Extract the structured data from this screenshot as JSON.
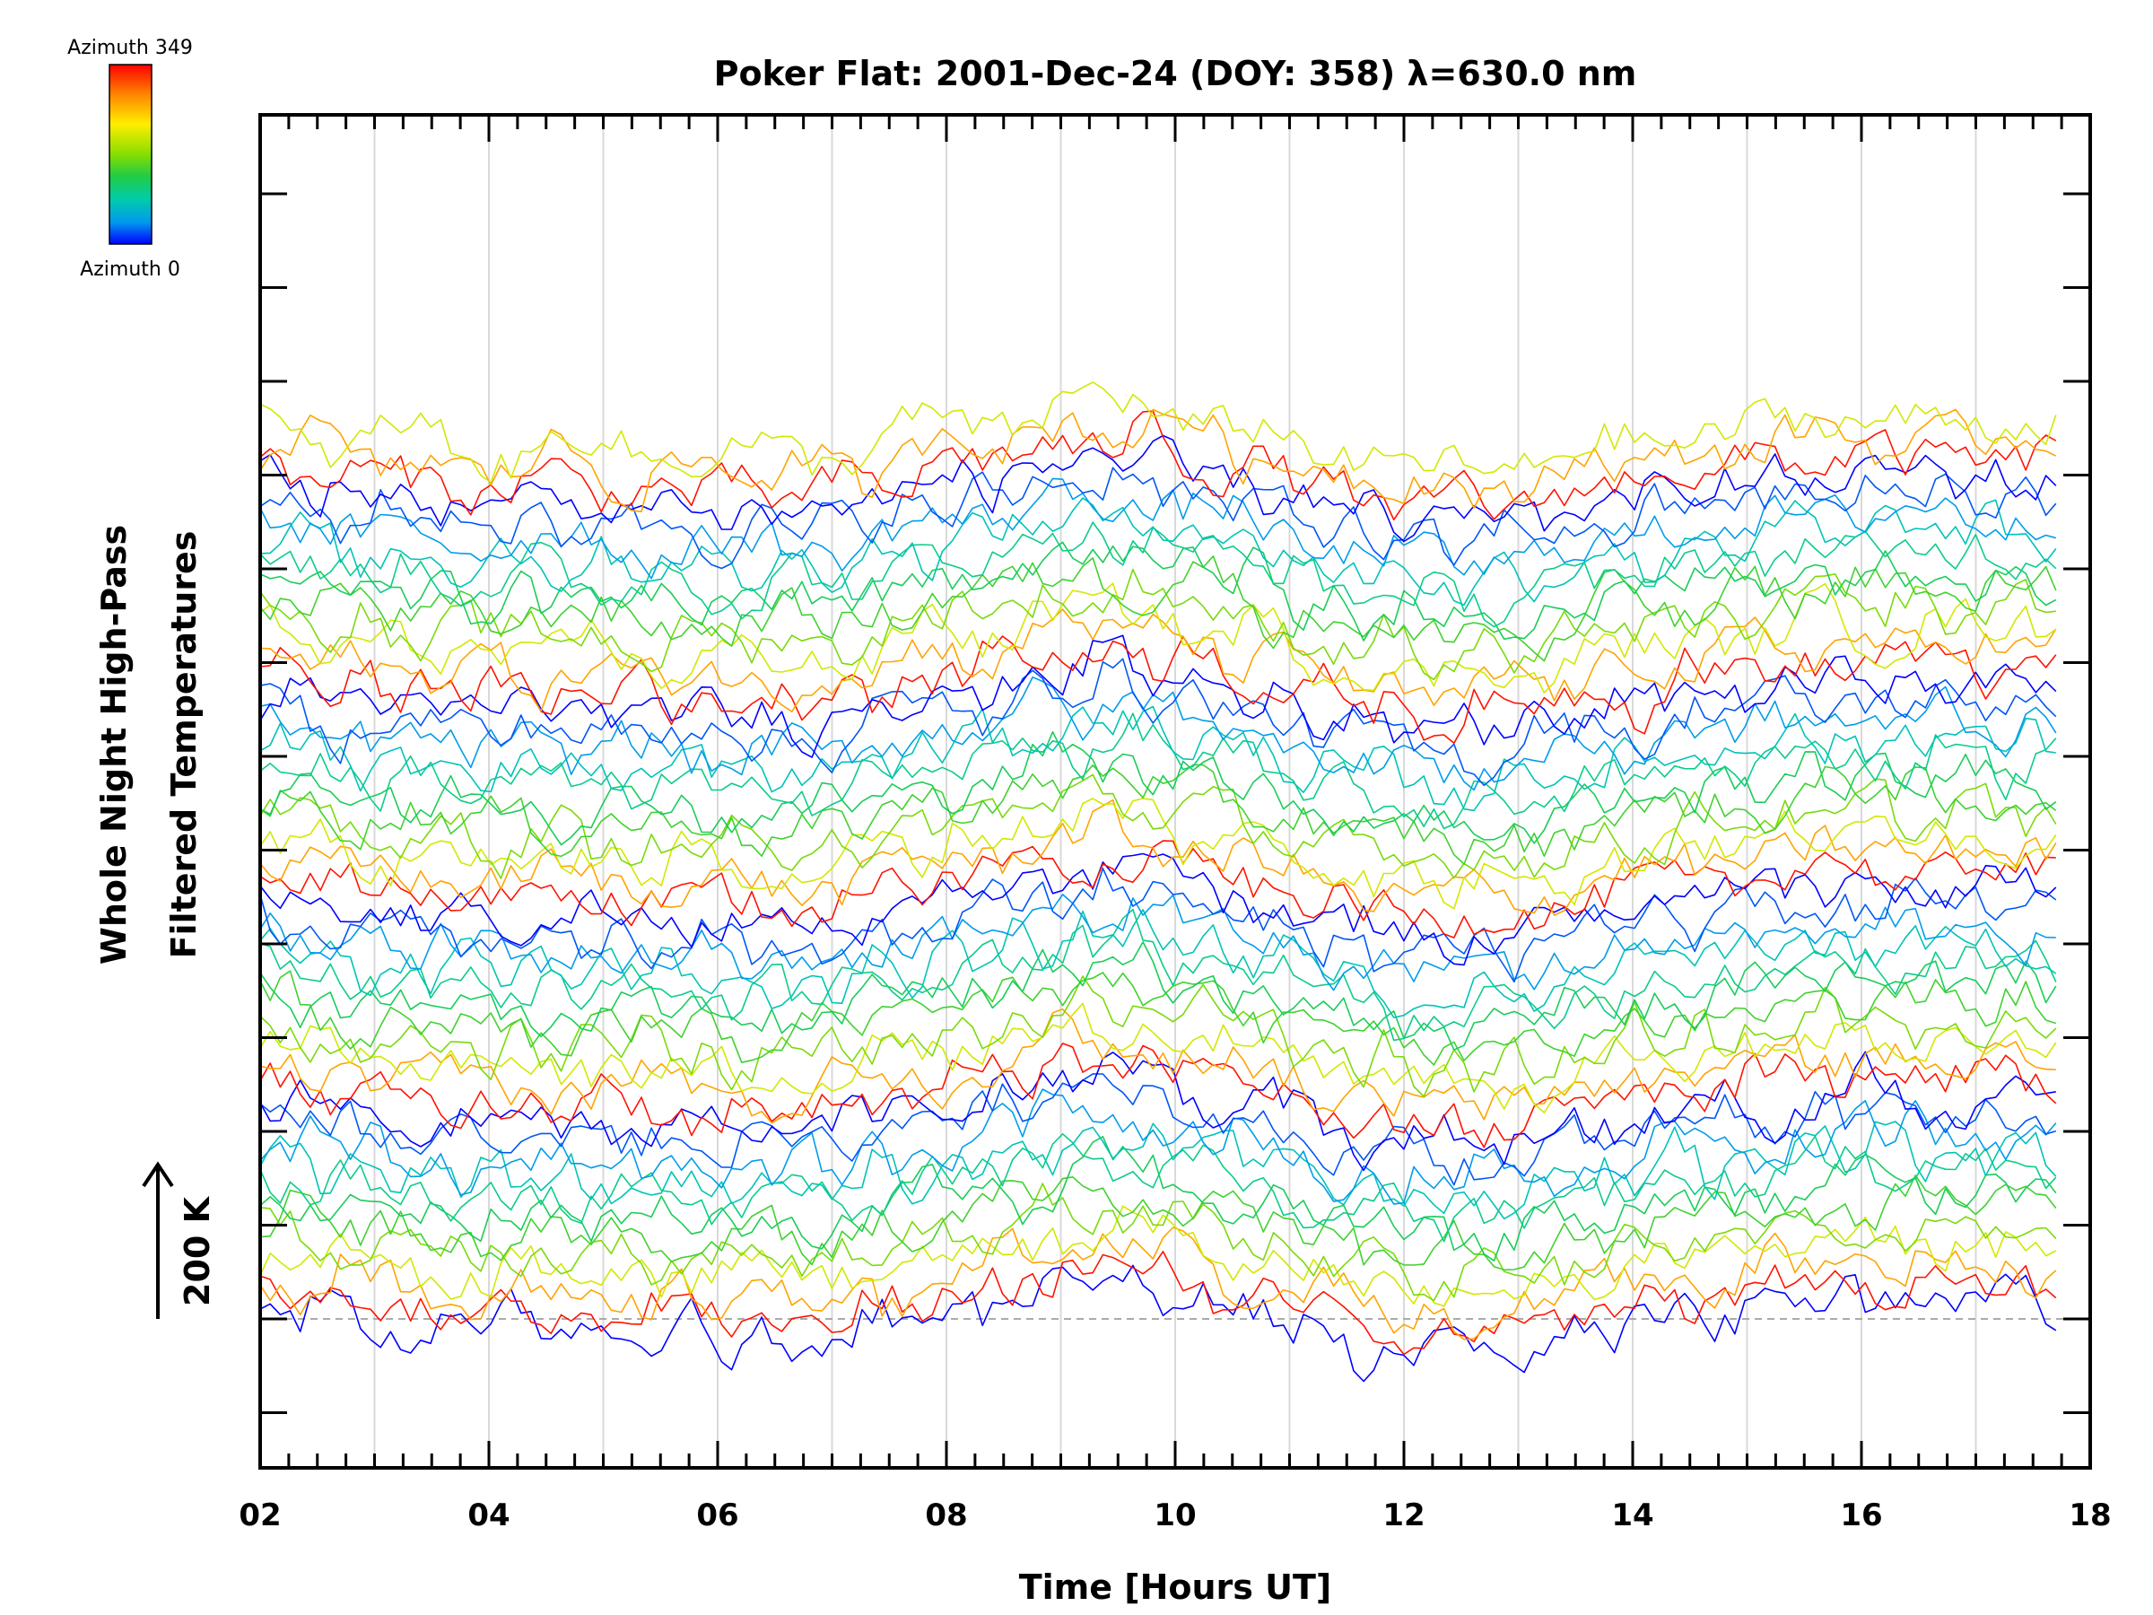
{
  "chart_data": {
    "type": "line",
    "title": "Poker Flat: 2001-Dec-24 (DOY: 358) λ=630.0 nm",
    "xlabel": "Time [Hours UT]",
    "ylabel_line1": "Whole Night High-Pass",
    "ylabel_line2": "Filtered Temperatures",
    "scale_label": "200 K",
    "xlim": [
      2,
      18
    ],
    "x_tick_labels": [
      "02",
      "04",
      "06",
      "08",
      "10",
      "12",
      "14",
      "16",
      "18"
    ],
    "colorbar": {
      "top_label": "Azimuth 349",
      "bottom_label": "Azimuth 0",
      "colors": [
        "#ff0000",
        "#ff8800",
        "#ffee00",
        "#88dd00",
        "#22cc44",
        "#00ccaa",
        "#0099ee",
        "#0000ff"
      ]
    },
    "x_start": 2.0,
    "x_end": 17.7,
    "n_series": 48,
    "series_spacing_K": 40,
    "fluctuation_amplitude_K": 22,
    "grid": true,
    "baseline_dashed": true
  }
}
